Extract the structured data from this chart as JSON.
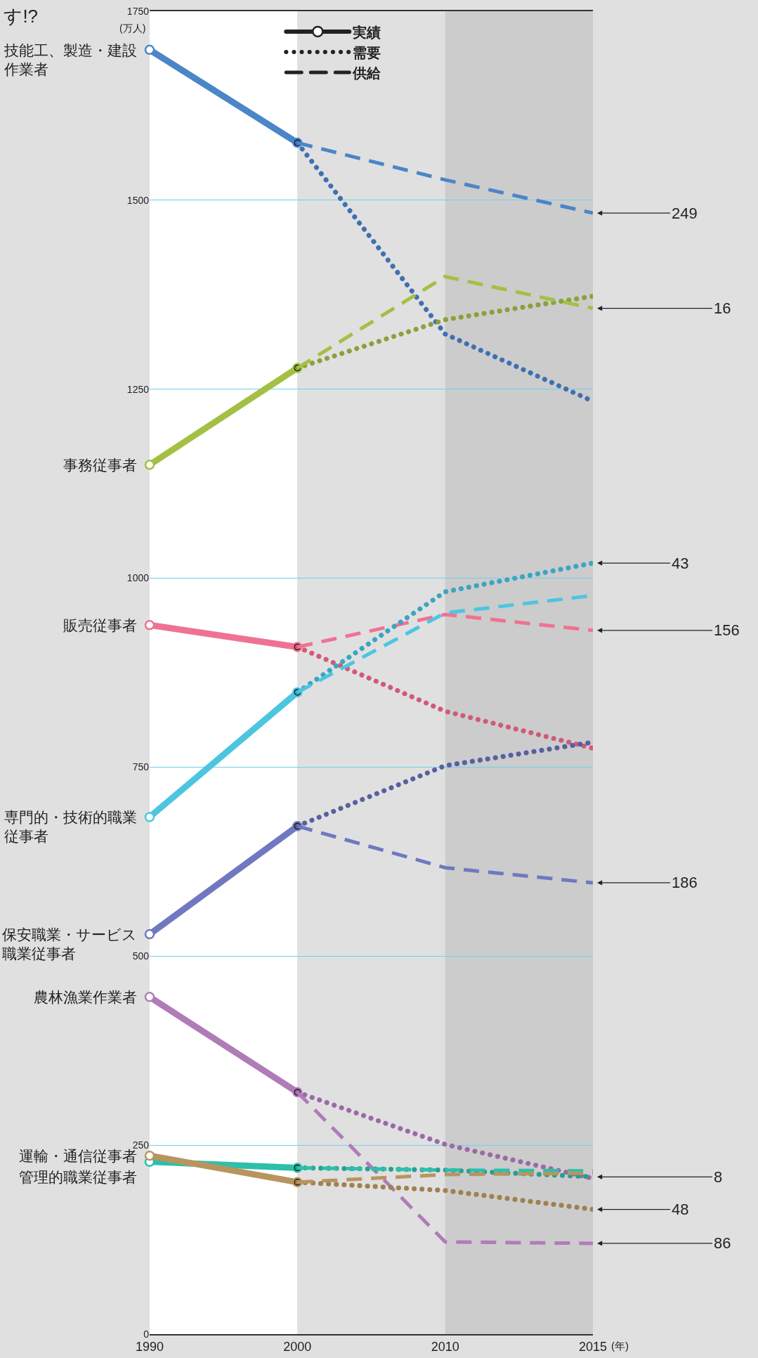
{
  "chart_data": {
    "type": "line",
    "title": "す!?",
    "xlabel": "(年)",
    "ylabel": "(万人)",
    "categories": [
      "1990",
      "2000",
      "2010",
      "2015"
    ],
    "ylim": [
      0,
      1750
    ],
    "yticks": [
      0,
      250,
      500,
      750,
      1000,
      1250,
      1500,
      1750
    ],
    "grid": "y",
    "legend": "top",
    "bands": [
      {
        "axis": "x",
        "from": "1990",
        "to": "2000",
        "color": "#ffffff"
      },
      {
        "axis": "x",
        "from": "2000",
        "to": "2010",
        "color": "#e0e0e0"
      },
      {
        "axis": "x",
        "from": "2010",
        "to": "2015",
        "color": "#cccccc"
      }
    ],
    "series": [
      {
        "name": "実績",
        "color": "#222222",
        "line_style": "solid",
        "marker": "circle",
        "values": [
          null,
          null,
          null,
          null
        ]
      },
      {
        "name": "需要",
        "color": "#222222",
        "line_style": "dotted",
        "marker": "none",
        "values": [
          null,
          null,
          null,
          null
        ]
      },
      {
        "name": "供給",
        "color": "#222222",
        "line_style": "dashed",
        "marker": "none",
        "values": [
          null,
          null,
          null,
          null
        ]
      },
      {
        "name": "技能工、製造・建設作業者",
        "color": "#4a86c8",
        "line_style": "solid",
        "marker": "circle",
        "values": [
          1699,
          1576,
          null,
          null
        ]
      },
      {
        "color": "#3f70b0",
        "line_style": "dotted",
        "marker": "none",
        "values": [
          null,
          1576,
          1323,
          1234
        ]
      },
      {
        "color": "#4a86c8",
        "line_style": "dashed",
        "marker": "none",
        "values": [
          null,
          1576,
          1527,
          1483
        ]
      },
      {
        "name": "事務従事者",
        "color": "#a3c044",
        "line_style": "solid",
        "marker": "circle",
        "values": [
          1150,
          1278,
          null,
          null
        ]
      },
      {
        "color": "#8ca03c",
        "line_style": "dotted",
        "marker": "none",
        "values": [
          null,
          1278,
          1342,
          1373
        ]
      },
      {
        "color": "#a3c044",
        "line_style": "dashed",
        "marker": "none",
        "values": [
          null,
          1278,
          1399,
          1357
        ]
      },
      {
        "name": "販売従事者",
        "color": "#f07292",
        "line_style": "solid",
        "marker": "circle",
        "values": [
          938,
          909,
          null,
          null
        ]
      },
      {
        "color": "#d05a78",
        "line_style": "dotted",
        "marker": "none",
        "values": [
          null,
          909,
          824,
          775
        ]
      },
      {
        "color": "#f07292",
        "line_style": "dashed",
        "marker": "none",
        "values": [
          null,
          909,
          952,
          931
        ]
      },
      {
        "name": "専門的・技術的職業従事者",
        "color": "#4cc6e0",
        "line_style": "solid",
        "marker": "circle",
        "values": [
          684,
          849,
          null,
          null
        ]
      },
      {
        "color": "#3aa6c0",
        "line_style": "dotted",
        "marker": "none",
        "values": [
          null,
          849,
          982,
          1020
        ]
      },
      {
        "color": "#4cc6e0",
        "line_style": "dashed",
        "marker": "none",
        "values": [
          null,
          849,
          954,
          977
        ]
      },
      {
        "name": "保安職業・サービス職業従事者",
        "color": "#7078c0",
        "line_style": "solid",
        "marker": "circle",
        "values": [
          529,
          672,
          null,
          null
        ]
      },
      {
        "color": "#5860a0",
        "line_style": "dotted",
        "marker": "none",
        "values": [
          null,
          672,
          752,
          783
        ]
      },
      {
        "color": "#7078c0",
        "line_style": "dashed",
        "marker": "none",
        "values": [
          null,
          672,
          617,
          597
        ]
      },
      {
        "name": "農林漁業作業者",
        "color": "#b07cb8",
        "line_style": "solid",
        "marker": "circle",
        "values": [
          446,
          320,
          null,
          null
        ]
      },
      {
        "color": "#9a6aa6",
        "line_style": "dotted",
        "marker": "none",
        "values": [
          null,
          320,
          251,
          206
        ]
      },
      {
        "color": "#b07cb8",
        "line_style": "dashed",
        "marker": "none",
        "values": [
          null,
          320,
          122,
          120
        ]
      },
      {
        "name": "管理的職業従事者",
        "color": "#2ebfab",
        "line_style": "solid",
        "marker": "circle",
        "values": [
          228,
          220,
          null,
          null
        ]
      },
      {
        "color": "#26a090",
        "line_style": "dotted",
        "marker": "none",
        "values": [
          null,
          220,
          217,
          208
        ]
      },
      {
        "color": "#2ebfab",
        "line_style": "dashed",
        "marker": "none",
        "values": [
          null,
          220,
          217,
          216
        ]
      },
      {
        "name": "運輸・通信従事者",
        "color": "#b8955e",
        "line_style": "solid",
        "marker": "circle",
        "values": [
          236,
          201,
          null,
          null
        ]
      },
      {
        "color": "#a08050",
        "line_style": "dotted",
        "marker": "none",
        "values": [
          null,
          201,
          190,
          165
        ]
      },
      {
        "color": "#b8955e",
        "line_style": "dashed",
        "marker": "none",
        "values": [
          null,
          201,
          211,
          213
        ]
      }
    ],
    "annotations": [
      {
        "text": "249",
        "x": "2015",
        "y": 1483
      },
      {
        "text": "16",
        "x": "2015",
        "y": 1357
      },
      {
        "text": "43",
        "x": "2015",
        "y": 1020
      },
      {
        "text": "156",
        "x": "2015",
        "y": 931
      },
      {
        "text": "186",
        "x": "2015",
        "y": 597
      },
      {
        "text": "8",
        "x": "2015",
        "y": 208
      },
      {
        "text": "48",
        "x": "2015",
        "y": 165
      },
      {
        "text": "86",
        "x": "2015",
        "y": 120
      }
    ]
  }
}
